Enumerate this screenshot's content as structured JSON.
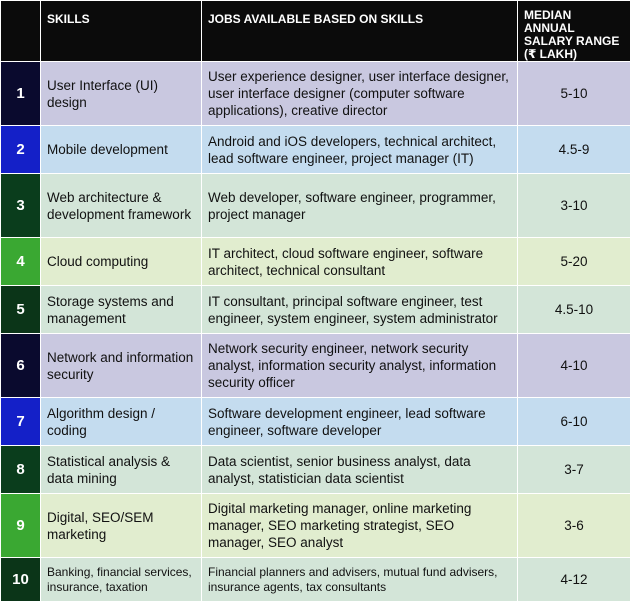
{
  "header": {
    "col_skills": "SKILLS",
    "col_jobs": "JOBS AVAILABLE BASED ON SKILLS",
    "col_salary_line1": "MEDIAN ANNUAL",
    "col_salary_line2": "SALARY RANGE",
    "col_salary_line3": "(₹ LAKH)"
  },
  "rows": [
    {
      "num": "1",
      "skill": "User Interface (UI) design",
      "jobs": "User experience designer, user interface designer, user interface designer (computer software applications), creative director",
      "salary": "5-10",
      "num_color": "#0a0a2e",
      "row_color": "#c9c8e0"
    },
    {
      "num": "2",
      "skill": "Mobile development",
      "jobs": "Android and iOS developers, technical architect, lead software engineer, project manager (IT)",
      "salary": "4.5-9",
      "num_color": "#1420c8",
      "row_color": "#c4dcef"
    },
    {
      "num": "3",
      "skill": "Web architecture & development framework",
      "jobs": "Web developer, software engineer, programmer, project manager",
      "salary": "3-10",
      "num_color": "#0a3d1c",
      "row_color": "#d3e5d8"
    },
    {
      "num": "4",
      "skill": "Cloud computing",
      "jobs": "IT architect, cloud software engineer, software architect, technical consultant",
      "salary": "5-20",
      "num_color": "#3aa832",
      "row_color": "#e1edcf"
    },
    {
      "num": "5",
      "skill": "Storage systems and management",
      "jobs": "IT consultant, principal software engineer, test engineer, system engineer, system administrator",
      "salary": "4.5-10",
      "num_color": "#0b3518",
      "row_color": "#d3e5d8"
    },
    {
      "num": "6",
      "skill": "Network and information security",
      "jobs": "Network security engineer, network security analyst, information security analyst, information security officer",
      "salary": "4-10",
      "num_color": "#0a0a2e",
      "row_color": "#c9c8e0"
    },
    {
      "num": "7",
      "skill": "Algorithm design / coding",
      "jobs": "Software development engineer, lead software engineer, software developer",
      "salary": "6-10",
      "num_color": "#1420c8",
      "row_color": "#c4dcef"
    },
    {
      "num": "8",
      "skill": "Statistical analysis & data mining",
      "jobs": "Data scientist, senior business analyst, data analyst, statistician data scientist",
      "salary": "3-7",
      "num_color": "#0a3d1c",
      "row_color": "#d3e5d8"
    },
    {
      "num": "9",
      "skill": "Digital, SEO/SEM marketing",
      "jobs": "Digital marketing manager, online marketing manager, SEO marketing strategist, SEO manager, SEO analyst",
      "salary": "3-6",
      "num_color": "#3aa832",
      "row_color": "#e1edcf"
    },
    {
      "num": "10",
      "skill": "Banking, financial services, insurance, taxation",
      "jobs": "Financial planners and advisers, mutual fund advisers, insurance agents, tax consultants",
      "salary": "4-12",
      "num_color": "#0b3518",
      "row_color": "#d3e5d8",
      "small": true
    }
  ]
}
